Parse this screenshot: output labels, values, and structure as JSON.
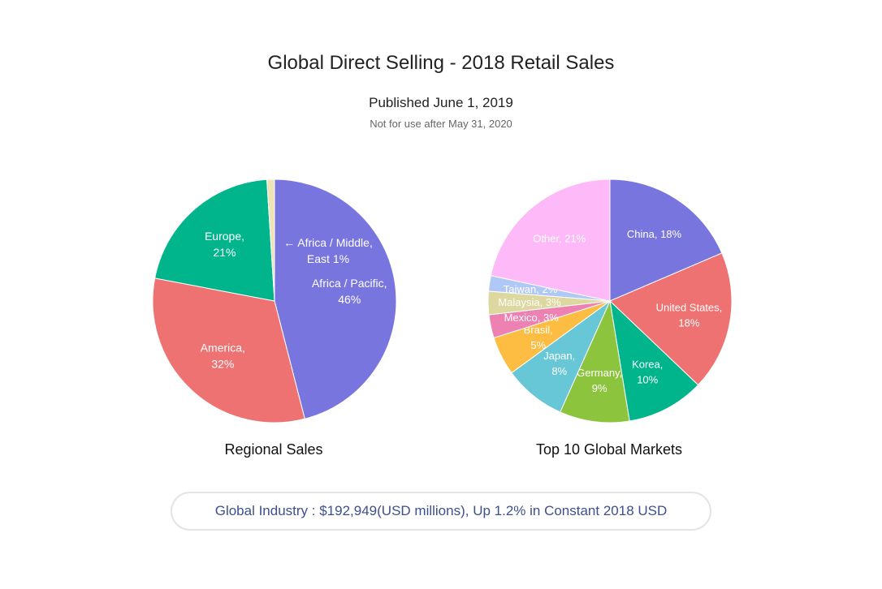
{
  "header": {
    "title": "Global Direct Selling - 2018 Retail Sales",
    "published": "Published June 1, 2019",
    "notice": "Not for use after May 31, 2020"
  },
  "chart_data": [
    {
      "type": "pie",
      "title": "Regional Sales",
      "slices": [
        {
          "label": [
            "Africa / Pacific,",
            "46%"
          ],
          "value": 46,
          "color": "#7975de"
        },
        {
          "label": [
            "America,",
            "32%"
          ],
          "value": 32,
          "color": "#ee7272"
        },
        {
          "label": [
            "Europe,",
            "21%"
          ],
          "value": 21,
          "color": "#00b48b"
        },
        {
          "label": [
            "Africa / Middle,",
            "East 1%"
          ],
          "value": 1,
          "color": "#ede3b5",
          "label_prefix": "←",
          "outside_label": true
        }
      ]
    },
    {
      "type": "pie",
      "title": "Top 10 Global Markets",
      "slices": [
        {
          "label": [
            "China, 18%"
          ],
          "value": 18,
          "color": "#7975de"
        },
        {
          "label": [
            "United States,",
            "18%"
          ],
          "value": 18,
          "color": "#ee7272"
        },
        {
          "label": [
            "Korea,",
            "10%"
          ],
          "value": 10,
          "color": "#00b48b"
        },
        {
          "label": [
            "Germany,",
            "9%"
          ],
          "value": 9,
          "color": "#8cc43e"
        },
        {
          "label": [
            "Japan,",
            "8%"
          ],
          "value": 8,
          "color": "#67c7d6"
        },
        {
          "label": [
            "Brasil,",
            "5%"
          ],
          "value": 5,
          "color": "#fcbd42"
        },
        {
          "label": [
            "Mexico, 3%"
          ],
          "value": 3,
          "color": "#ec81b2"
        },
        {
          "label": [
            "Malaysia, 3%"
          ],
          "value": 3,
          "color": "#dcd8a0"
        },
        {
          "label": [
            "Taiwan, 2%"
          ],
          "value": 2,
          "color": "#b0c8f6"
        },
        {
          "label": [
            "Other, 21%"
          ],
          "value": 21,
          "color": "#fdb9f8"
        }
      ]
    }
  ],
  "footer": {
    "text": "Global Industry : $192,949(USD millions), Up 1.2% in Constant 2018 USD"
  }
}
